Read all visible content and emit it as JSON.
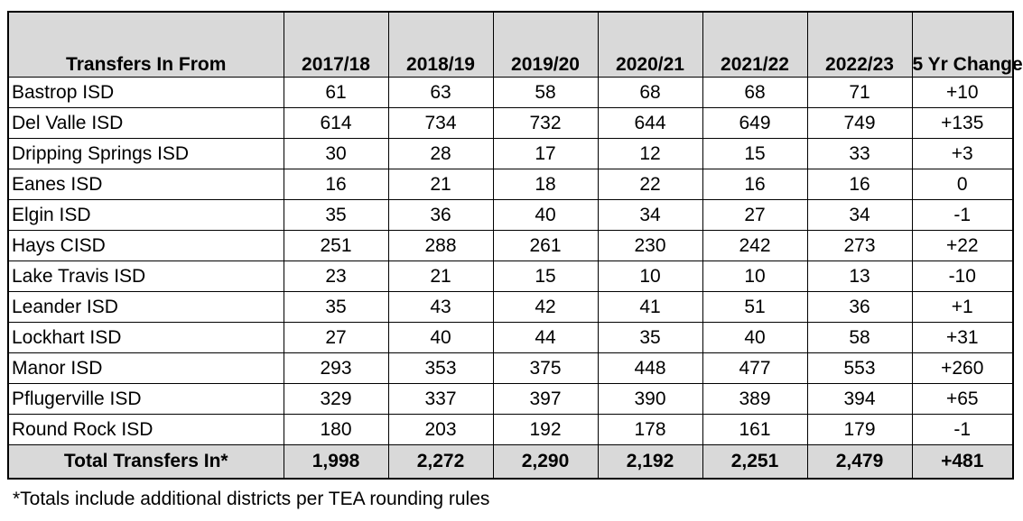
{
  "table": {
    "header": {
      "district_label": "Transfers In From",
      "year_columns": [
        "2017/18",
        "2018/19",
        "2019/20",
        "2020/21",
        "2021/22",
        "2022/23"
      ],
      "change_column": "5 Yr Change"
    },
    "rows": [
      {
        "district": "Bastrop ISD",
        "values": [
          "61",
          "63",
          "58",
          "68",
          "68",
          "71"
        ],
        "change": "+10"
      },
      {
        "district": "Del Valle ISD",
        "values": [
          "614",
          "734",
          "732",
          "644",
          "649",
          "749"
        ],
        "change": "+135"
      },
      {
        "district": "Dripping Springs ISD",
        "values": [
          "30",
          "28",
          "17",
          "12",
          "15",
          "33"
        ],
        "change": "+3"
      },
      {
        "district": "Eanes ISD",
        "values": [
          "16",
          "21",
          "18",
          "22",
          "16",
          "16"
        ],
        "change": "0"
      },
      {
        "district": "Elgin ISD",
        "values": [
          "35",
          "36",
          "40",
          "34",
          "27",
          "34"
        ],
        "change": "-1"
      },
      {
        "district": "Hays CISD",
        "values": [
          "251",
          "288",
          "261",
          "230",
          "242",
          "273"
        ],
        "change": "+22"
      },
      {
        "district": "Lake Travis ISD",
        "values": [
          "23",
          "21",
          "15",
          "10",
          "10",
          "13"
        ],
        "change": "-10"
      },
      {
        "district": "Leander ISD",
        "values": [
          "35",
          "43",
          "42",
          "41",
          "51",
          "36"
        ],
        "change": "+1"
      },
      {
        "district": "Lockhart ISD",
        "values": [
          "27",
          "40",
          "44",
          "35",
          "40",
          "58"
        ],
        "change": "+31"
      },
      {
        "district": "Manor ISD",
        "values": [
          "293",
          "353",
          "375",
          "448",
          "477",
          "553"
        ],
        "change": "+260"
      },
      {
        "district": "Pflugerville ISD",
        "values": [
          "329",
          "337",
          "397",
          "390",
          "389",
          "394"
        ],
        "change": "+65"
      },
      {
        "district": "Round Rock ISD",
        "values": [
          "180",
          "203",
          "192",
          "178",
          "161",
          "179"
        ],
        "change": "-1"
      }
    ],
    "total": {
      "label": "Total Transfers In*",
      "values": [
        "1,998",
        "2,272",
        "2,290",
        "2,192",
        "2,251",
        "2,479"
      ],
      "change": "+481"
    }
  },
  "footnote": "*Totals include additional districts per TEA rounding rules",
  "colors": {
    "header_bg": "#d9d9d9",
    "border": "#000000",
    "page_bg": "#ffffff"
  }
}
